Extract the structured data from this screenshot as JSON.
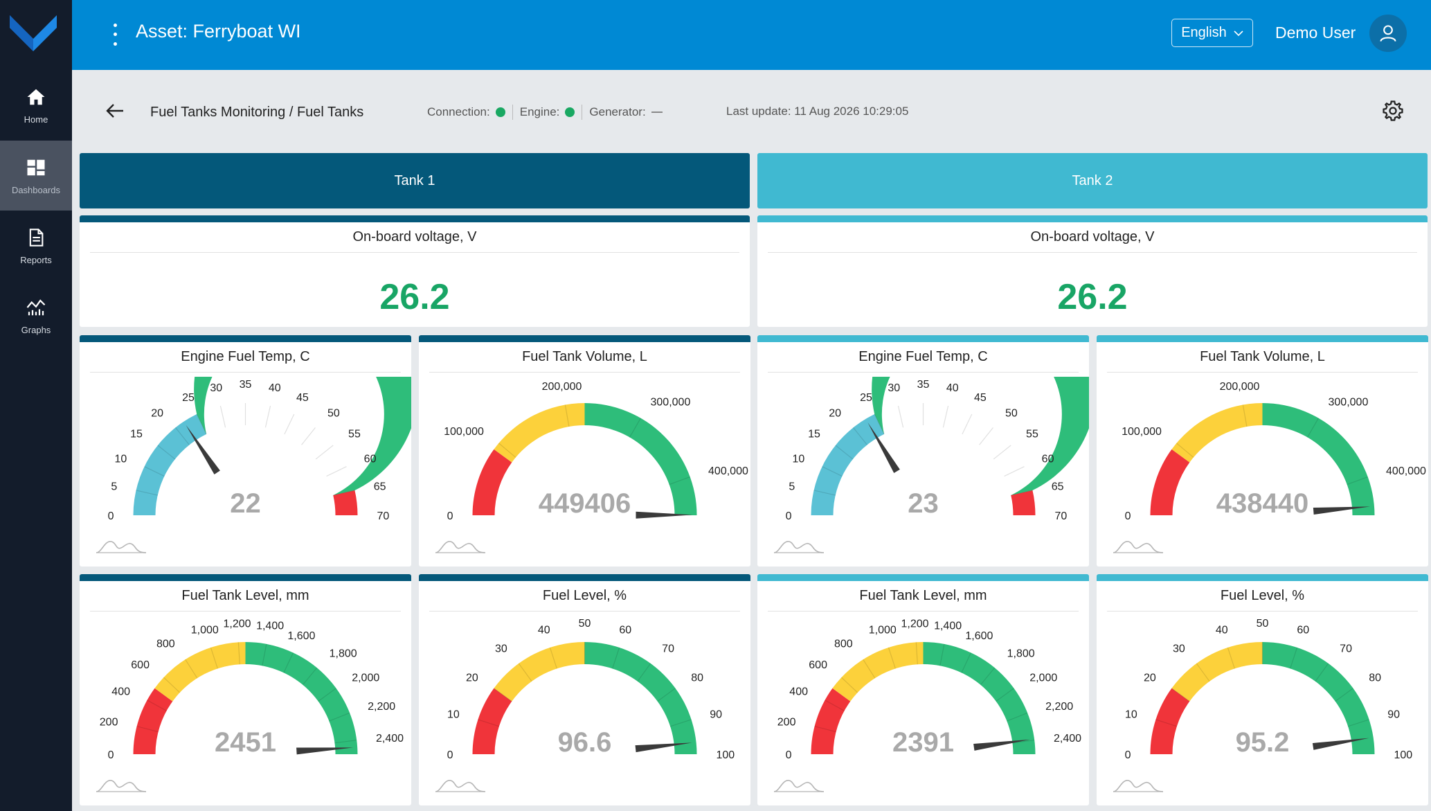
{
  "app": {
    "asset_title": "Asset: Ferryboat WI",
    "language": "English",
    "user_name": "Demo User"
  },
  "sidebar": {
    "items": [
      {
        "label": "Home",
        "icon": "home-icon"
      },
      {
        "label": "Dashboards",
        "icon": "dashboards-icon",
        "active": true
      },
      {
        "label": "Reports",
        "icon": "reports-icon"
      },
      {
        "label": "Graphs",
        "icon": "graphs-icon"
      }
    ]
  },
  "subheader": {
    "breadcrumb": "Fuel Tanks Monitoring / Fuel Tanks",
    "connection_label": "Connection:",
    "engine_label": "Engine:",
    "generator_label": "Generator:",
    "last_update": "Last update: 11 Aug 2026 10:29:05"
  },
  "colors": {
    "tank1": "#04587a",
    "tank2": "#40b9d1",
    "green": "#2ebd7a",
    "yellow": "#fcd13b",
    "red": "#f0343a",
    "blue": "#5bc1d5",
    "value_green": "#18a565"
  },
  "tanks": [
    {
      "tab_label": "Tank 1",
      "voltage": {
        "title": "On-board voltage, V",
        "value": "26.2"
      },
      "gauges": [
        {
          "title": "Engine Fuel Temp, C",
          "value": 22,
          "display": "22",
          "min": 0,
          "max": 70,
          "ticks": [
            "0",
            "5",
            "10",
            "15",
            "20",
            "25",
            "30",
            "35",
            "40",
            "45",
            "50",
            "55",
            "60",
            "65",
            "70"
          ],
          "zones": [
            {
              "from": 0,
              "to": 25,
              "color": "#5bc1d5"
            },
            {
              "from": 25,
              "to": 65,
              "color": "#2ebd7a"
            },
            {
              "from": 65,
              "to": 70,
              "color": "#f0343a"
            }
          ]
        },
        {
          "title": "Fuel Tank Volume, L",
          "value": 449406,
          "display": "449406",
          "min": 0,
          "max": 450000,
          "ticks": [
            "0",
            "100,000",
            "200,000",
            "300,000",
            "400,000"
          ],
          "tick_step": 100000,
          "zones": [
            {
              "from": 0,
              "to": 90000,
              "color": "#f0343a"
            },
            {
              "from": 90000,
              "to": 225000,
              "color": "#fcd13b"
            },
            {
              "from": 225000,
              "to": 450000,
              "color": "#2ebd7a"
            }
          ]
        },
        {
          "title": "Fuel Tank Level, mm",
          "value": 2451,
          "display": "2451",
          "min": 0,
          "max": 2500,
          "ticks": [
            "0",
            "200",
            "400",
            "600",
            "800",
            "1,000",
            "1,200",
            "1,400",
            "1,600",
            "1,800",
            "2,000",
            "2,200",
            "2,400"
          ],
          "tick_step": 200,
          "zones": [
            {
              "from": 0,
              "to": 500,
              "color": "#f0343a"
            },
            {
              "from": 500,
              "to": 1250,
              "color": "#fcd13b"
            },
            {
              "from": 1250,
              "to": 2500,
              "color": "#2ebd7a"
            }
          ]
        },
        {
          "title": "Fuel Level, %",
          "value": 96.6,
          "display": "96.6",
          "min": 0,
          "max": 100,
          "ticks": [
            "0",
            "10",
            "20",
            "30",
            "40",
            "50",
            "60",
            "70",
            "80",
            "90",
            "100"
          ],
          "tick_step": 10,
          "zones": [
            {
              "from": 0,
              "to": 20,
              "color": "#f0343a"
            },
            {
              "from": 20,
              "to": 50,
              "color": "#fcd13b"
            },
            {
              "from": 50,
              "to": 100,
              "color": "#2ebd7a"
            }
          ]
        }
      ]
    },
    {
      "tab_label": "Tank 2",
      "voltage": {
        "title": "On-board voltage, V",
        "value": "26.2"
      },
      "gauges": [
        {
          "title": "Engine Fuel Temp, C",
          "value": 23,
          "display": "23",
          "min": 0,
          "max": 70,
          "ticks": [
            "0",
            "5",
            "10",
            "15",
            "20",
            "25",
            "30",
            "35",
            "40",
            "45",
            "50",
            "55",
            "60",
            "65",
            "70"
          ],
          "zones": [
            {
              "from": 0,
              "to": 25,
              "color": "#5bc1d5"
            },
            {
              "from": 25,
              "to": 65,
              "color": "#2ebd7a"
            },
            {
              "from": 65,
              "to": 70,
              "color": "#f0343a"
            }
          ]
        },
        {
          "title": "Fuel Tank Volume, L",
          "value": 438440,
          "display": "438440",
          "min": 0,
          "max": 450000,
          "ticks": [
            "0",
            "100,000",
            "200,000",
            "300,000",
            "400,000"
          ],
          "tick_step": 100000,
          "zones": [
            {
              "from": 0,
              "to": 90000,
              "color": "#f0343a"
            },
            {
              "from": 90000,
              "to": 225000,
              "color": "#fcd13b"
            },
            {
              "from": 225000,
              "to": 450000,
              "color": "#2ebd7a"
            }
          ]
        },
        {
          "title": "Fuel Tank Level, mm",
          "value": 2391,
          "display": "2391",
          "min": 0,
          "max": 2500,
          "ticks": [
            "0",
            "200",
            "400",
            "600",
            "800",
            "1,000",
            "1,200",
            "1,400",
            "1,600",
            "1,800",
            "2,000",
            "2,200",
            "2,400"
          ],
          "tick_step": 200,
          "zones": [
            {
              "from": 0,
              "to": 500,
              "color": "#f0343a"
            },
            {
              "from": 500,
              "to": 1250,
              "color": "#fcd13b"
            },
            {
              "from": 1250,
              "to": 2500,
              "color": "#2ebd7a"
            }
          ]
        },
        {
          "title": "Fuel Level, %",
          "value": 95.2,
          "display": "95.2",
          "min": 0,
          "max": 100,
          "ticks": [
            "0",
            "10",
            "20",
            "30",
            "40",
            "50",
            "60",
            "70",
            "80",
            "90",
            "100"
          ],
          "tick_step": 10,
          "zones": [
            {
              "from": 0,
              "to": 20,
              "color": "#f0343a"
            },
            {
              "from": 20,
              "to": 50,
              "color": "#fcd13b"
            },
            {
              "from": 50,
              "to": 100,
              "color": "#2ebd7a"
            }
          ]
        }
      ]
    }
  ]
}
